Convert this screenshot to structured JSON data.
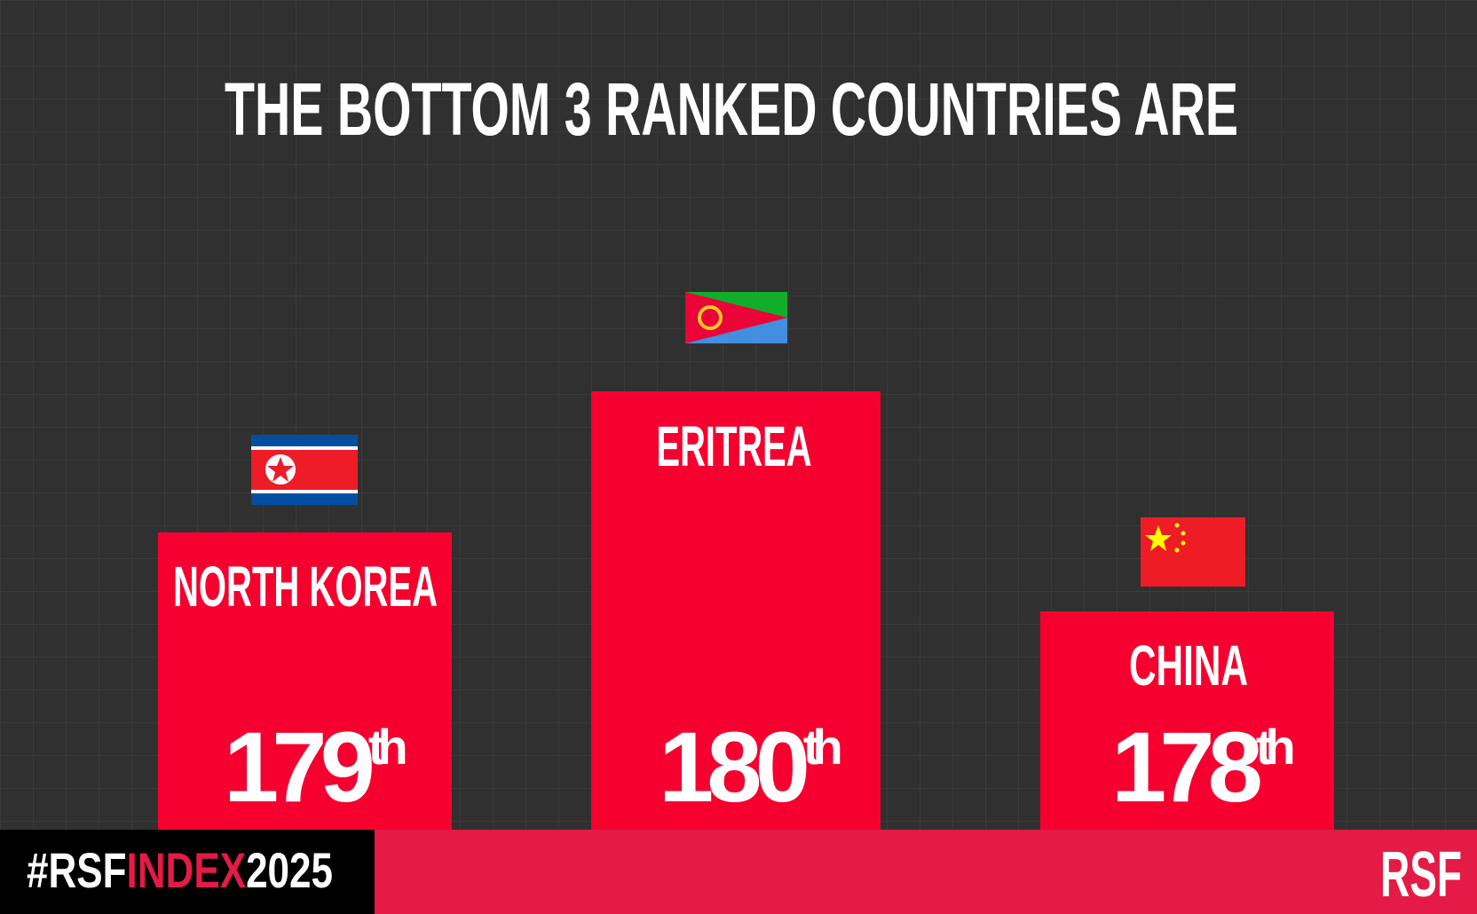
{
  "title": "THE BOTTOM 3 RANKED COUNTRIES ARE",
  "podium": [
    {
      "country": "NORTH KOREA",
      "rank": "179",
      "suffix": "th"
    },
    {
      "country": "ERITREA",
      "rank": "180",
      "suffix": "th"
    },
    {
      "country": "CHINA",
      "rank": "178",
      "suffix": "th"
    }
  ],
  "footer": {
    "hashtag": [
      "#RSF",
      "INDEX",
      "2025"
    ],
    "logo": "RSF"
  }
}
